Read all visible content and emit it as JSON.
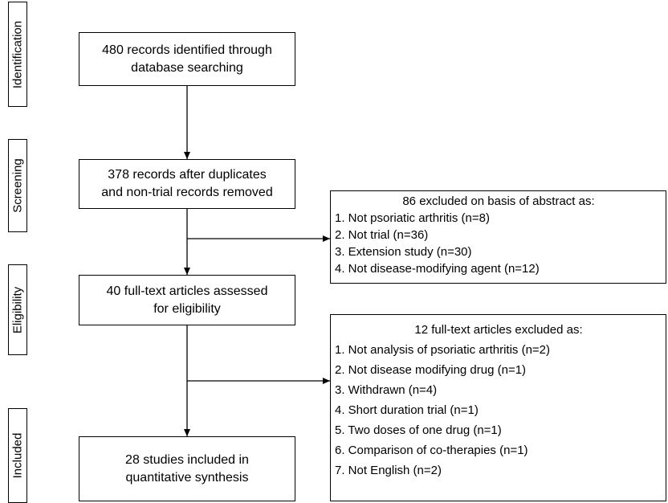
{
  "stages": {
    "identification": "Identification",
    "screening": "Screening",
    "eligibility": "Eligibility",
    "included": "Included"
  },
  "boxes": {
    "identified": [
      "480 records identified through",
      "database searching"
    ],
    "screened": [
      "378 records after duplicates",
      "and non-trial records removed"
    ],
    "fulltext": [
      "40 full-text articles assessed",
      "for eligibility"
    ],
    "included": [
      "28 studies included in",
      "quantitative synthesis"
    ]
  },
  "exclusions_abstract": {
    "title": "86 excluded on basis of abstract as:",
    "items": [
      "1. Not psoriatic arthritis (n=8)",
      "2. Not trial (n=36)",
      "3. Extension study (n=30)",
      "4. Not disease-modifying agent (n=12)"
    ]
  },
  "exclusions_fulltext": {
    "title": "12 full-text articles excluded as:",
    "items": [
      "1. Not analysis of psoriatic arthritis (n=2)",
      "2. Not disease modifying drug (n=1)",
      "3. Withdrawn (n=4)",
      "4. Short duration trial (n=1)",
      "5. Two doses of one drug (n=1)",
      "6. Comparison of co-therapies (n=1)",
      "7. Not English (n=2)"
    ]
  }
}
